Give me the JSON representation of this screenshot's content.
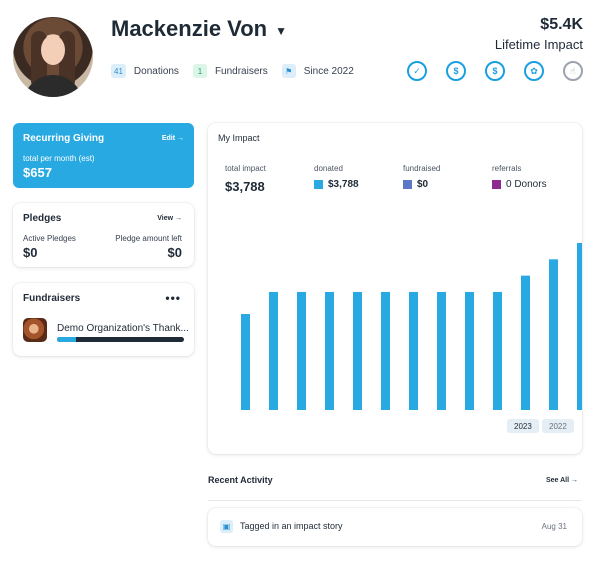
{
  "profile": {
    "name": "Mackenzie Von",
    "lifetime_amount": "$5.4K",
    "lifetime_label": "Lifetime Impact",
    "stats": [
      {
        "count": "41",
        "label": "Donations"
      },
      {
        "count": "1",
        "label": "Fundraisers"
      },
      {
        "count": "⚑",
        "label": "Since 2022"
      }
    ],
    "badges": [
      {
        "icon": "check-badge-icon",
        "glyph": "✓"
      },
      {
        "icon": "dollar-badge-icon",
        "glyph": "$"
      },
      {
        "icon": "dollar-badge-icon",
        "glyph": "$"
      },
      {
        "icon": "star-badge-icon",
        "glyph": "✿"
      },
      {
        "icon": "thumb-badge-icon",
        "glyph": "☝"
      }
    ],
    "accent_color": "#29a9e1"
  },
  "recurring": {
    "title": "Recurring Giving",
    "edit_label": "Edit →",
    "sub_label": "total per month (est)",
    "value": "$657"
  },
  "pledges": {
    "title": "Pledges",
    "view_label": "View →",
    "active_label": "Active Pledges",
    "active_value": "$0",
    "left_label": "Pledge amount left",
    "left_value": "$0"
  },
  "fundraisers": {
    "title": "Fundraisers",
    "menu_label": "•••",
    "item_name": "Demo Organization's Thank...",
    "progress": 0.15
  },
  "impact": {
    "title": "My Impact",
    "total_label": "total impact",
    "total_value": "$3,788",
    "donated_label": "donated",
    "donated_value": "$3,788",
    "donated_color": "#29a9e1",
    "fundraised_label": "fundraised",
    "fundraised_value": "$0",
    "fundraised_color": "#5b78c7",
    "referrals_label": "referrals",
    "referrals_value": "0 Donors",
    "referrals_color": "#8e2a8f",
    "years": [
      "2023",
      "2022"
    ]
  },
  "chart_data": {
    "type": "bar",
    "values": [
      1.0,
      1.23,
      1.23,
      1.23,
      1.23,
      1.23,
      1.23,
      1.23,
      1.23,
      1.23,
      1.4,
      1.57,
      1.74
    ],
    "ylim": [
      0,
      1.74
    ],
    "grid": false,
    "color": "#29a9e1"
  },
  "recent": {
    "title": "Recent Activity",
    "see_all": "See All →",
    "items": [
      {
        "text": "Tagged in an impact story",
        "date": "Aug 31"
      }
    ]
  }
}
